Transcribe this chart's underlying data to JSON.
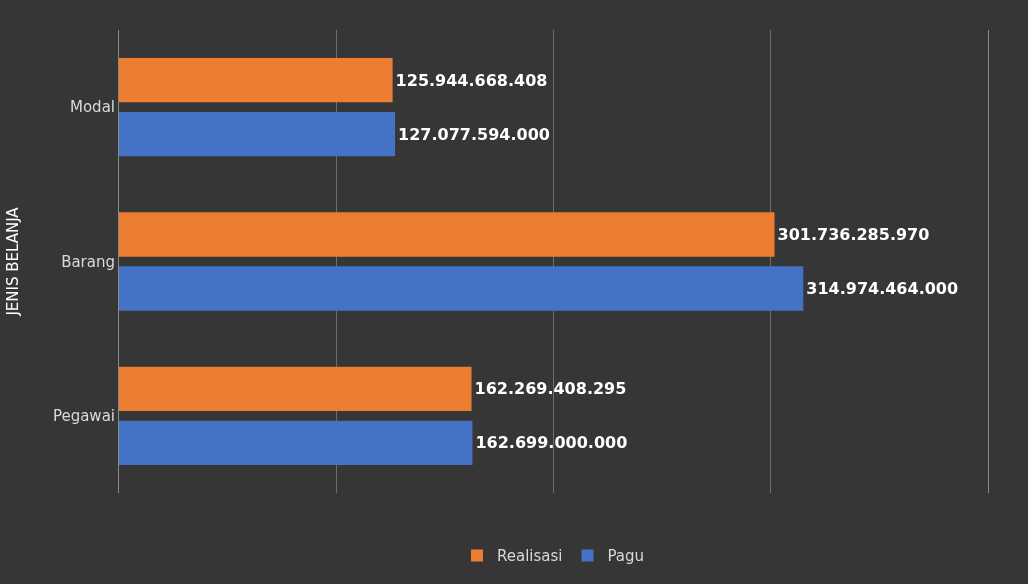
{
  "chart_data": {
    "type": "bar",
    "orientation": "horizontal",
    "ylabel": "JENIS BELANJA",
    "categories": [
      "Modal",
      "Barang",
      "Pegawai"
    ],
    "series": [
      {
        "name": "Realisasi",
        "color": "#ed7d31",
        "values": [
          125944668408,
          301736285970,
          162269408295
        ],
        "value_labels": [
          "125.944.668.408",
          "301.736.285.970",
          "162.269.408.295"
        ]
      },
      {
        "name": "Pagu",
        "color": "#4472c4",
        "values": [
          127077594000,
          314974464000,
          162699000000
        ],
        "value_labels": [
          "127.077.594.000",
          "314.974.464.000",
          "162.699.000.000"
        ]
      }
    ],
    "xlim": [
      0,
      400000000000
    ],
    "xticks": [
      {
        "value": 0,
        "label": null
      },
      {
        "value": 100000000000,
        "label": null
      },
      {
        "value": 200000000000,
        "label": null
      },
      {
        "value": 300000000000,
        "label": null
      },
      {
        "value": 400000000000,
        "label": null
      }
    ],
    "tick_labels": "y",
    "grid": "x",
    "legend": "bottom"
  }
}
